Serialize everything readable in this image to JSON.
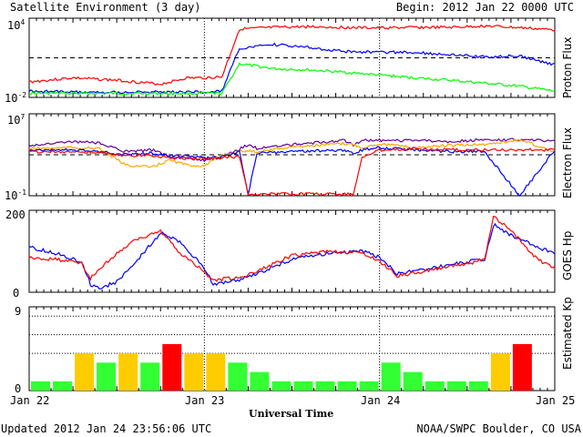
{
  "header": {
    "title": "Satellite Environment (3 day)",
    "begin": "Begin:  2012 Jan 22 0000 UTC"
  },
  "footer": {
    "updated": "Updated 2012 Jan 24 23:56:06 UTC",
    "credit": "NOAA/SWPC Boulder, CO USA"
  },
  "x_axis": {
    "label": "Universal Time",
    "ticks": [
      "Jan 22",
      "Jan 23",
      "Jan 24",
      "Jan 25"
    ]
  },
  "colors": {
    "red": "#ff0000",
    "blue": "#0000ff",
    "green": "#00ff00",
    "purple": "#660099",
    "orange": "#ffa500",
    "kp_green": "#33ff33",
    "kp_yellow": "#ffcc00",
    "kp_red": "#ff0000"
  },
  "chart_data": [
    {
      "type": "line",
      "panel": "proton",
      "ylabel": "Proton Flux",
      "scale": "log",
      "ylim": [
        0.01,
        10000
      ],
      "yticks": [
        {
          "base": "10",
          "exp": "4"
        },
        {
          "base": "10",
          "exp": "-2"
        }
      ],
      "threshold": 10,
      "x_days": [
        0,
        0.25,
        0.5,
        0.75,
        0.9,
        1.0,
        1.1,
        1.2,
        1.4,
        1.6,
        1.8,
        2.0,
        2.2,
        2.4,
        2.6,
        2.8,
        3.0
      ],
      "series": [
        {
          "color": "red",
          "values": [
            0.15,
            0.3,
            0.2,
            0.1,
            0.3,
            0.3,
            0.35,
            1500,
            2000,
            2300,
            2000,
            1800,
            2000,
            2000,
            2600,
            1900,
            1300
          ]
        },
        {
          "color": "blue",
          "values": [
            0.03,
            0.025,
            0.025,
            0.025,
            0.025,
            0.025,
            0.03,
            50,
            100,
            60,
            30,
            27,
            25,
            18,
            12,
            14,
            3
          ]
        },
        {
          "color": "green",
          "values": [
            0.02,
            0.02,
            0.02,
            0.02,
            0.02,
            0.02,
            0.02,
            3.5,
            1.5,
            1.2,
            0.8,
            0.5,
            0.3,
            0.2,
            0.12,
            0.07,
            0.03
          ]
        }
      ]
    },
    {
      "type": "line",
      "panel": "electron",
      "ylabel": "Electron Flux",
      "scale": "log",
      "ylim": [
        0.1,
        10000000
      ],
      "yticks": [
        {
          "base": "10",
          "exp": "7"
        },
        {
          "base": "10",
          "exp": "-1"
        }
      ],
      "threshold": 1000,
      "x_days": [
        0,
        0.25,
        0.4,
        0.55,
        0.7,
        0.8,
        0.9,
        1.0,
        1.1,
        1.2,
        1.25,
        1.3,
        1.5,
        1.8,
        1.85,
        1.9,
        2.0,
        2.2,
        2.4,
        2.6,
        2.8,
        3.0
      ],
      "series": [
        {
          "color": "purple",
          "values": [
            8000,
            20000,
            15000,
            2000,
            3000,
            700,
            400,
            300,
            600,
            3500,
            10000,
            4000,
            10000,
            25000,
            8000,
            25000,
            25000,
            25000,
            20000,
            30000,
            30000,
            20000
          ]
        },
        {
          "color": "orange",
          "values": [
            4000,
            5000,
            4000,
            100,
            60,
            300,
            100,
            80,
            1000,
            2000,
            2500,
            2000,
            6000,
            12000,
            10000,
            5000,
            12000,
            5000,
            8000,
            10000,
            30000,
            2000
          ]
        },
        {
          "color": "blue",
          "values": [
            3000,
            3000,
            2000,
            1000,
            1500,
            800,
            700,
            500,
            600,
            2000,
            0.15,
            1500,
            2000,
            3000,
            1500,
            3000,
            5000,
            3000,
            2000,
            2000,
            0.1,
            3000
          ]
        },
        {
          "color": "red",
          "values": [
            2000,
            2000,
            1500,
            800,
            900,
            500,
            450,
            450,
            500,
            700,
            0.15,
            0.15,
            0.15,
            0.15,
            0.15,
            500,
            3000,
            4000,
            3000,
            3000,
            3000,
            3000
          ]
        }
      ]
    },
    {
      "type": "line",
      "panel": "goes_hp",
      "ylabel": "GOES Hp",
      "scale": "linear",
      "ylim": [
        0,
        200
      ],
      "yticks": [
        "200",
        "0"
      ],
      "x_days": [
        0,
        0.15,
        0.3,
        0.35,
        0.4,
        0.5,
        0.6,
        0.75,
        0.85,
        1.0,
        1.05,
        1.2,
        1.3,
        1.5,
        1.7,
        1.9,
        2.0,
        2.1,
        2.3,
        2.5,
        2.6,
        2.65,
        2.75,
        2.9,
        3.0
      ],
      "series": [
        {
          "color": "blue",
          "values": [
            110,
            95,
            75,
            20,
            10,
            25,
            70,
            145,
            125,
            60,
            20,
            30,
            45,
            80,
            95,
            100,
            85,
            45,
            60,
            75,
            80,
            165,
            140,
            110,
            95
          ]
        },
        {
          "color": "red",
          "values": [
            85,
            80,
            70,
            35,
            55,
            95,
            125,
            150,
            100,
            50,
            30,
            35,
            50,
            90,
            100,
            95,
            75,
            40,
            55,
            70,
            80,
            185,
            150,
            80,
            60
          ]
        }
      ]
    },
    {
      "type": "bar",
      "panel": "kp",
      "ylabel": "Estimated Kp",
      "ylim": [
        0,
        9
      ],
      "yticks": [
        "9",
        "0"
      ],
      "threshold_levels": [
        4,
        6,
        8
      ],
      "interval_hours": 3,
      "values": [
        1,
        1,
        4,
        3,
        4,
        3,
        5,
        4,
        4,
        3,
        2,
        1,
        1,
        1,
        1,
        1,
        3,
        2,
        1,
        1,
        1,
        4,
        5
      ]
    }
  ]
}
